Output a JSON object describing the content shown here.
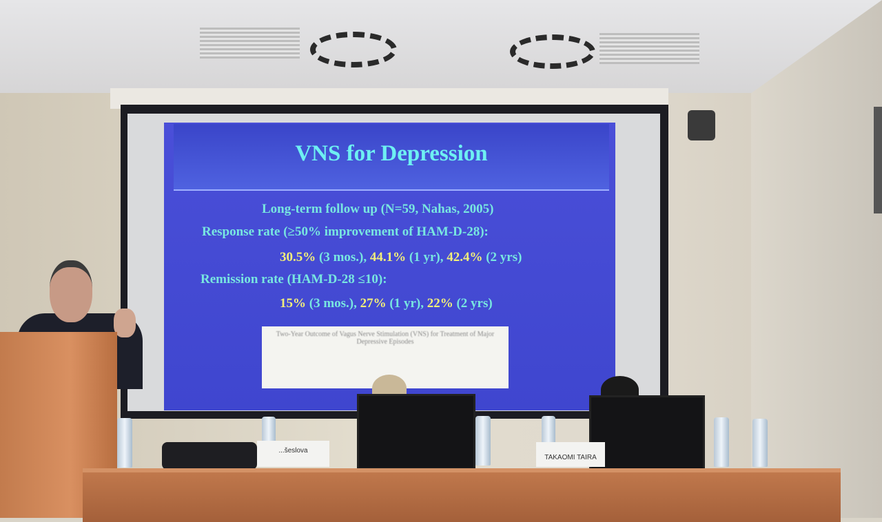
{
  "slide": {
    "title": "VNS for Depression",
    "lines": {
      "followup": "Long-term follow up (N=59, Nahas, 2005)",
      "response_label": "Response rate (≥50% improvement of HAM-D-28):",
      "response_values": [
        {
          "value": "30.5%",
          "period": " (3 mos.), "
        },
        {
          "value": "44.1%",
          "period": " (1 yr), "
        },
        {
          "value": "42.4%",
          "period": " (2 yrs)"
        }
      ],
      "remission_label": "Remission rate (HAM-D-28 ≤10):",
      "remission_values": [
        {
          "value": "15%",
          "period": " (3 mos.), "
        },
        {
          "value": "27%",
          "period": " (1 yr), "
        },
        {
          "value": "22%",
          "period": " (2 yrs)"
        }
      ]
    },
    "paper_title": "Two-Year Outcome of Vagus Nerve Stimulation (VNS) for Treatment of Major Depressive Episodes"
  },
  "nameplates": {
    "left": "...šeslova",
    "right": "TAKAOMI TAIRA"
  },
  "colors": {
    "slide_bg": "#4349d3",
    "title": "#6ef0f2",
    "text": "#78e6e0",
    "highlight": "#f2ef7a",
    "desk": "#b36b42"
  }
}
